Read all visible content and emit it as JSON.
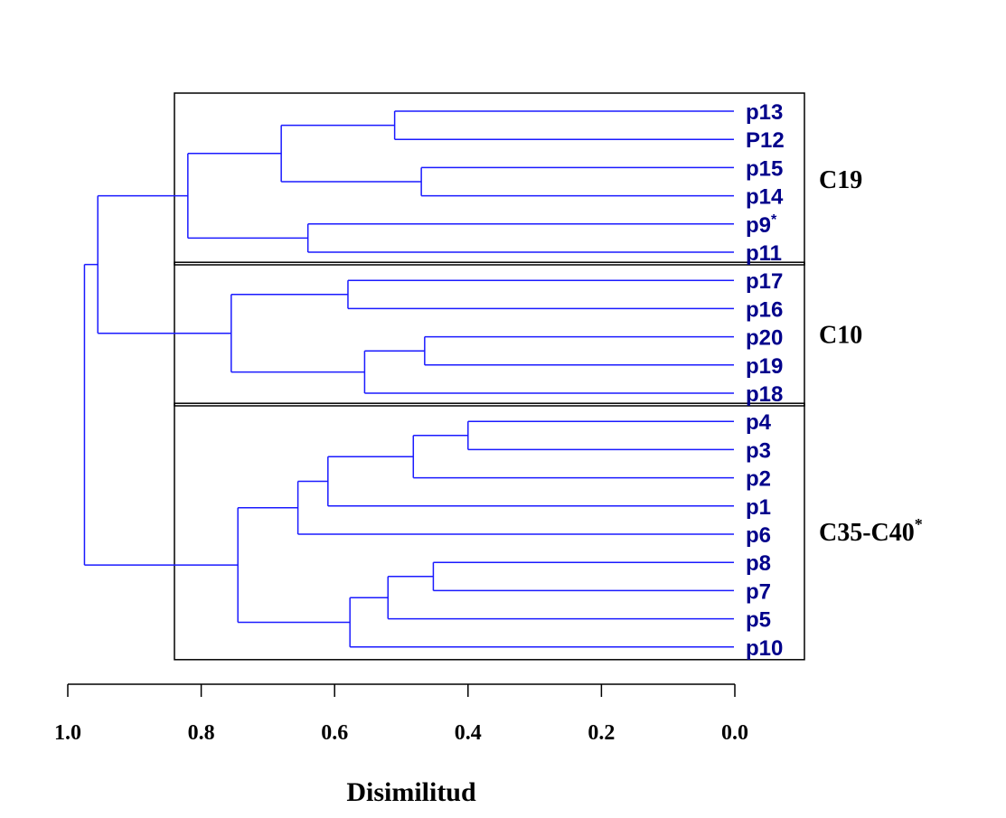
{
  "chart_data": {
    "type": "dendrogram",
    "xlabel": "Disimilitud",
    "xlim": [
      1.0,
      0.0
    ],
    "x_ticks": [
      "1.0",
      "0.8",
      "0.6",
      "0.4",
      "0.2",
      "0.0"
    ],
    "x_tick_values": [
      1.0,
      0.8,
      0.6,
      0.4,
      0.2,
      0.0
    ],
    "line_color": "#1a1aff",
    "label_color": "#00008b",
    "leaves": [
      {
        "id": "p13",
        "label": "p13"
      },
      {
        "id": "P12",
        "label": "P12"
      },
      {
        "id": "p15",
        "label": "p15"
      },
      {
        "id": "p14",
        "label": "p14"
      },
      {
        "id": "p9",
        "label": "p9",
        "sup": "*"
      },
      {
        "id": "p11",
        "label": "p11"
      },
      {
        "id": "p17",
        "label": "p17"
      },
      {
        "id": "p16",
        "label": "p16"
      },
      {
        "id": "p20",
        "label": "p20"
      },
      {
        "id": "p19",
        "label": "p19"
      },
      {
        "id": "p18",
        "label": "p18"
      },
      {
        "id": "p4",
        "label": "p4"
      },
      {
        "id": "p3",
        "label": "p3"
      },
      {
        "id": "p2",
        "label": "p2"
      },
      {
        "id": "p1",
        "label": "p1"
      },
      {
        "id": "p6",
        "label": "p6"
      },
      {
        "id": "p8",
        "label": "p8"
      },
      {
        "id": "p7",
        "label": "p7"
      },
      {
        "id": "p5",
        "label": "p5"
      },
      {
        "id": "p10",
        "label": "p10"
      }
    ],
    "merges": [
      {
        "id": "m1",
        "left": "p13",
        "right": "P12",
        "height": 0.51
      },
      {
        "id": "m2",
        "left": "p15",
        "right": "p14",
        "height": 0.47
      },
      {
        "id": "m3",
        "left": "m1",
        "right": "m2",
        "height": 0.68
      },
      {
        "id": "m4",
        "left": "p9",
        "right": "p11",
        "height": 0.64
      },
      {
        "id": "m5",
        "left": "m3",
        "right": "m4",
        "height": 0.82
      },
      {
        "id": "m6",
        "left": "p17",
        "right": "p16",
        "height": 0.58
      },
      {
        "id": "m7",
        "left": "p20",
        "right": "p19",
        "height": 0.465
      },
      {
        "id": "m8",
        "left": "m7",
        "right": "p18",
        "height": 0.555
      },
      {
        "id": "m9",
        "left": "m6",
        "right": "m8",
        "height": 0.755
      },
      {
        "id": "m10",
        "left": "m5",
        "right": "m9",
        "height": 0.955
      },
      {
        "id": "m11",
        "left": "p4",
        "right": "p3",
        "height": 0.4
      },
      {
        "id": "m12",
        "left": "m11",
        "right": "p2",
        "height": 0.482
      },
      {
        "id": "m13",
        "left": "m12",
        "right": "p1",
        "height": 0.61
      },
      {
        "id": "m14",
        "left": "m13",
        "right": "p6",
        "height": 0.655
      },
      {
        "id": "m15",
        "left": "p8",
        "right": "p7",
        "height": 0.452
      },
      {
        "id": "m16",
        "left": "m15",
        "right": "p5",
        "height": 0.52
      },
      {
        "id": "m17",
        "left": "m16",
        "right": "p10",
        "height": 0.577
      },
      {
        "id": "m18",
        "left": "m14",
        "right": "m17",
        "height": 0.745
      },
      {
        "id": "m19",
        "left": "m10",
        "right": "m18",
        "height": 0.975
      }
    ],
    "groups": [
      {
        "name": "C19",
        "sup": "",
        "first_leaf": 0,
        "last_leaf": 5
      },
      {
        "name": "C10",
        "sup": "",
        "first_leaf": 6,
        "last_leaf": 10
      },
      {
        "name": "C35-C40",
        "sup": "*",
        "first_leaf": 11,
        "last_leaf": 19
      }
    ]
  }
}
